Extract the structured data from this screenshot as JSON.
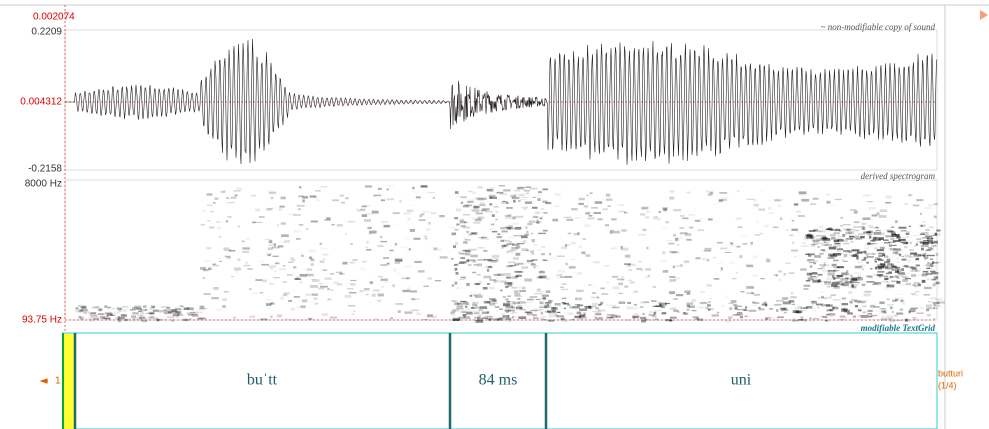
{
  "time_cursor": "0.002074",
  "waveform": {
    "y_max": "0.2209",
    "y_cursor": "0.004312",
    "y_min": "-0.2158",
    "label": "~ non-modifiable copy of sound"
  },
  "spectrogram": {
    "f_max": "8000 Hz",
    "f_min": "93.75 Hz",
    "label": "derived spectrogram"
  },
  "textgrid": {
    "label": "modifiable TextGrid",
    "tier_number": "1",
    "tier_name": "butturi",
    "tier_count": "(1/4)",
    "intervals": [
      "buˈtt",
      "84 ms",
      "uni"
    ]
  }
}
